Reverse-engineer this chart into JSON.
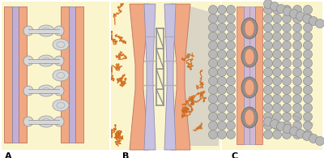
{
  "figure_bg": "#ffffff",
  "label_A": "A",
  "label_B": "B",
  "label_C": "C",
  "pink": "#f0a882",
  "lavender": "#c0b0d8",
  "lav_inner": "#c8c0e0",
  "gray_conn": "#c0c0c0",
  "gray_dark": "#909090",
  "orange": "#d06818",
  "bead_light": "#b8b8b8",
  "bead_mid": "#989898",
  "yellow": "#faf5cc",
  "gray_shade": "#c0bcc0"
}
